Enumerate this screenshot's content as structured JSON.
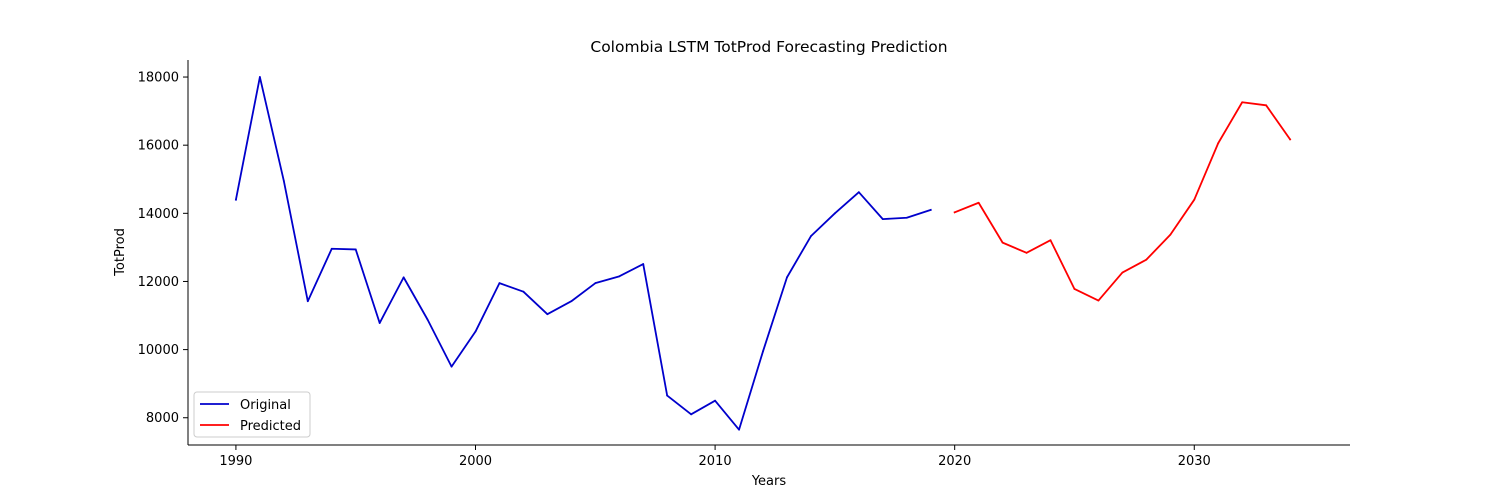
{
  "chart_data": {
    "type": "line",
    "title": "Colombia LSTM TotProd Forecasting Prediction",
    "xlabel": "Years",
    "ylabel": "TotProd",
    "xlim": [
      1988,
      2036.5
    ],
    "ylim": [
      7200,
      18500
    ],
    "x_ticks": [
      1990,
      2000,
      2010,
      2020,
      2030
    ],
    "y_ticks": [
      8000,
      10000,
      12000,
      14000,
      16000,
      18000
    ],
    "grid": false,
    "legend_position": "lower-left",
    "series": [
      {
        "name": "Original",
        "color": "#0000cc",
        "x": [
          1990,
          1991,
          1992,
          1993,
          1994,
          1995,
          1996,
          1997,
          1998,
          1999,
          2000,
          2001,
          2002,
          2003,
          2004,
          2005,
          2006,
          2007,
          2008,
          2009,
          2010,
          2011,
          2012,
          2013,
          2014,
          2015,
          2016,
          2017,
          2018,
          2019
        ],
        "values": [
          14400,
          18000,
          14950,
          11420,
          12960,
          12940,
          10780,
          12120,
          10880,
          9500,
          10530,
          11950,
          11700,
          11040,
          11420,
          11950,
          12150,
          12510,
          8650,
          8100,
          8500,
          7650,
          9950,
          12120,
          13330,
          14000,
          14620,
          13830,
          13870,
          14100
        ]
      },
      {
        "name": "Predicted",
        "color": "#ff0000",
        "x": [
          2020,
          2021,
          2022,
          2023,
          2024,
          2025,
          2026,
          2027,
          2028,
          2029,
          2030,
          2031,
          2032,
          2033,
          2034
        ],
        "values": [
          14030,
          14310,
          13140,
          12840,
          13210,
          11780,
          11440,
          12260,
          12640,
          13370,
          14400,
          16060,
          17260,
          17170,
          16170
        ]
      }
    ]
  }
}
